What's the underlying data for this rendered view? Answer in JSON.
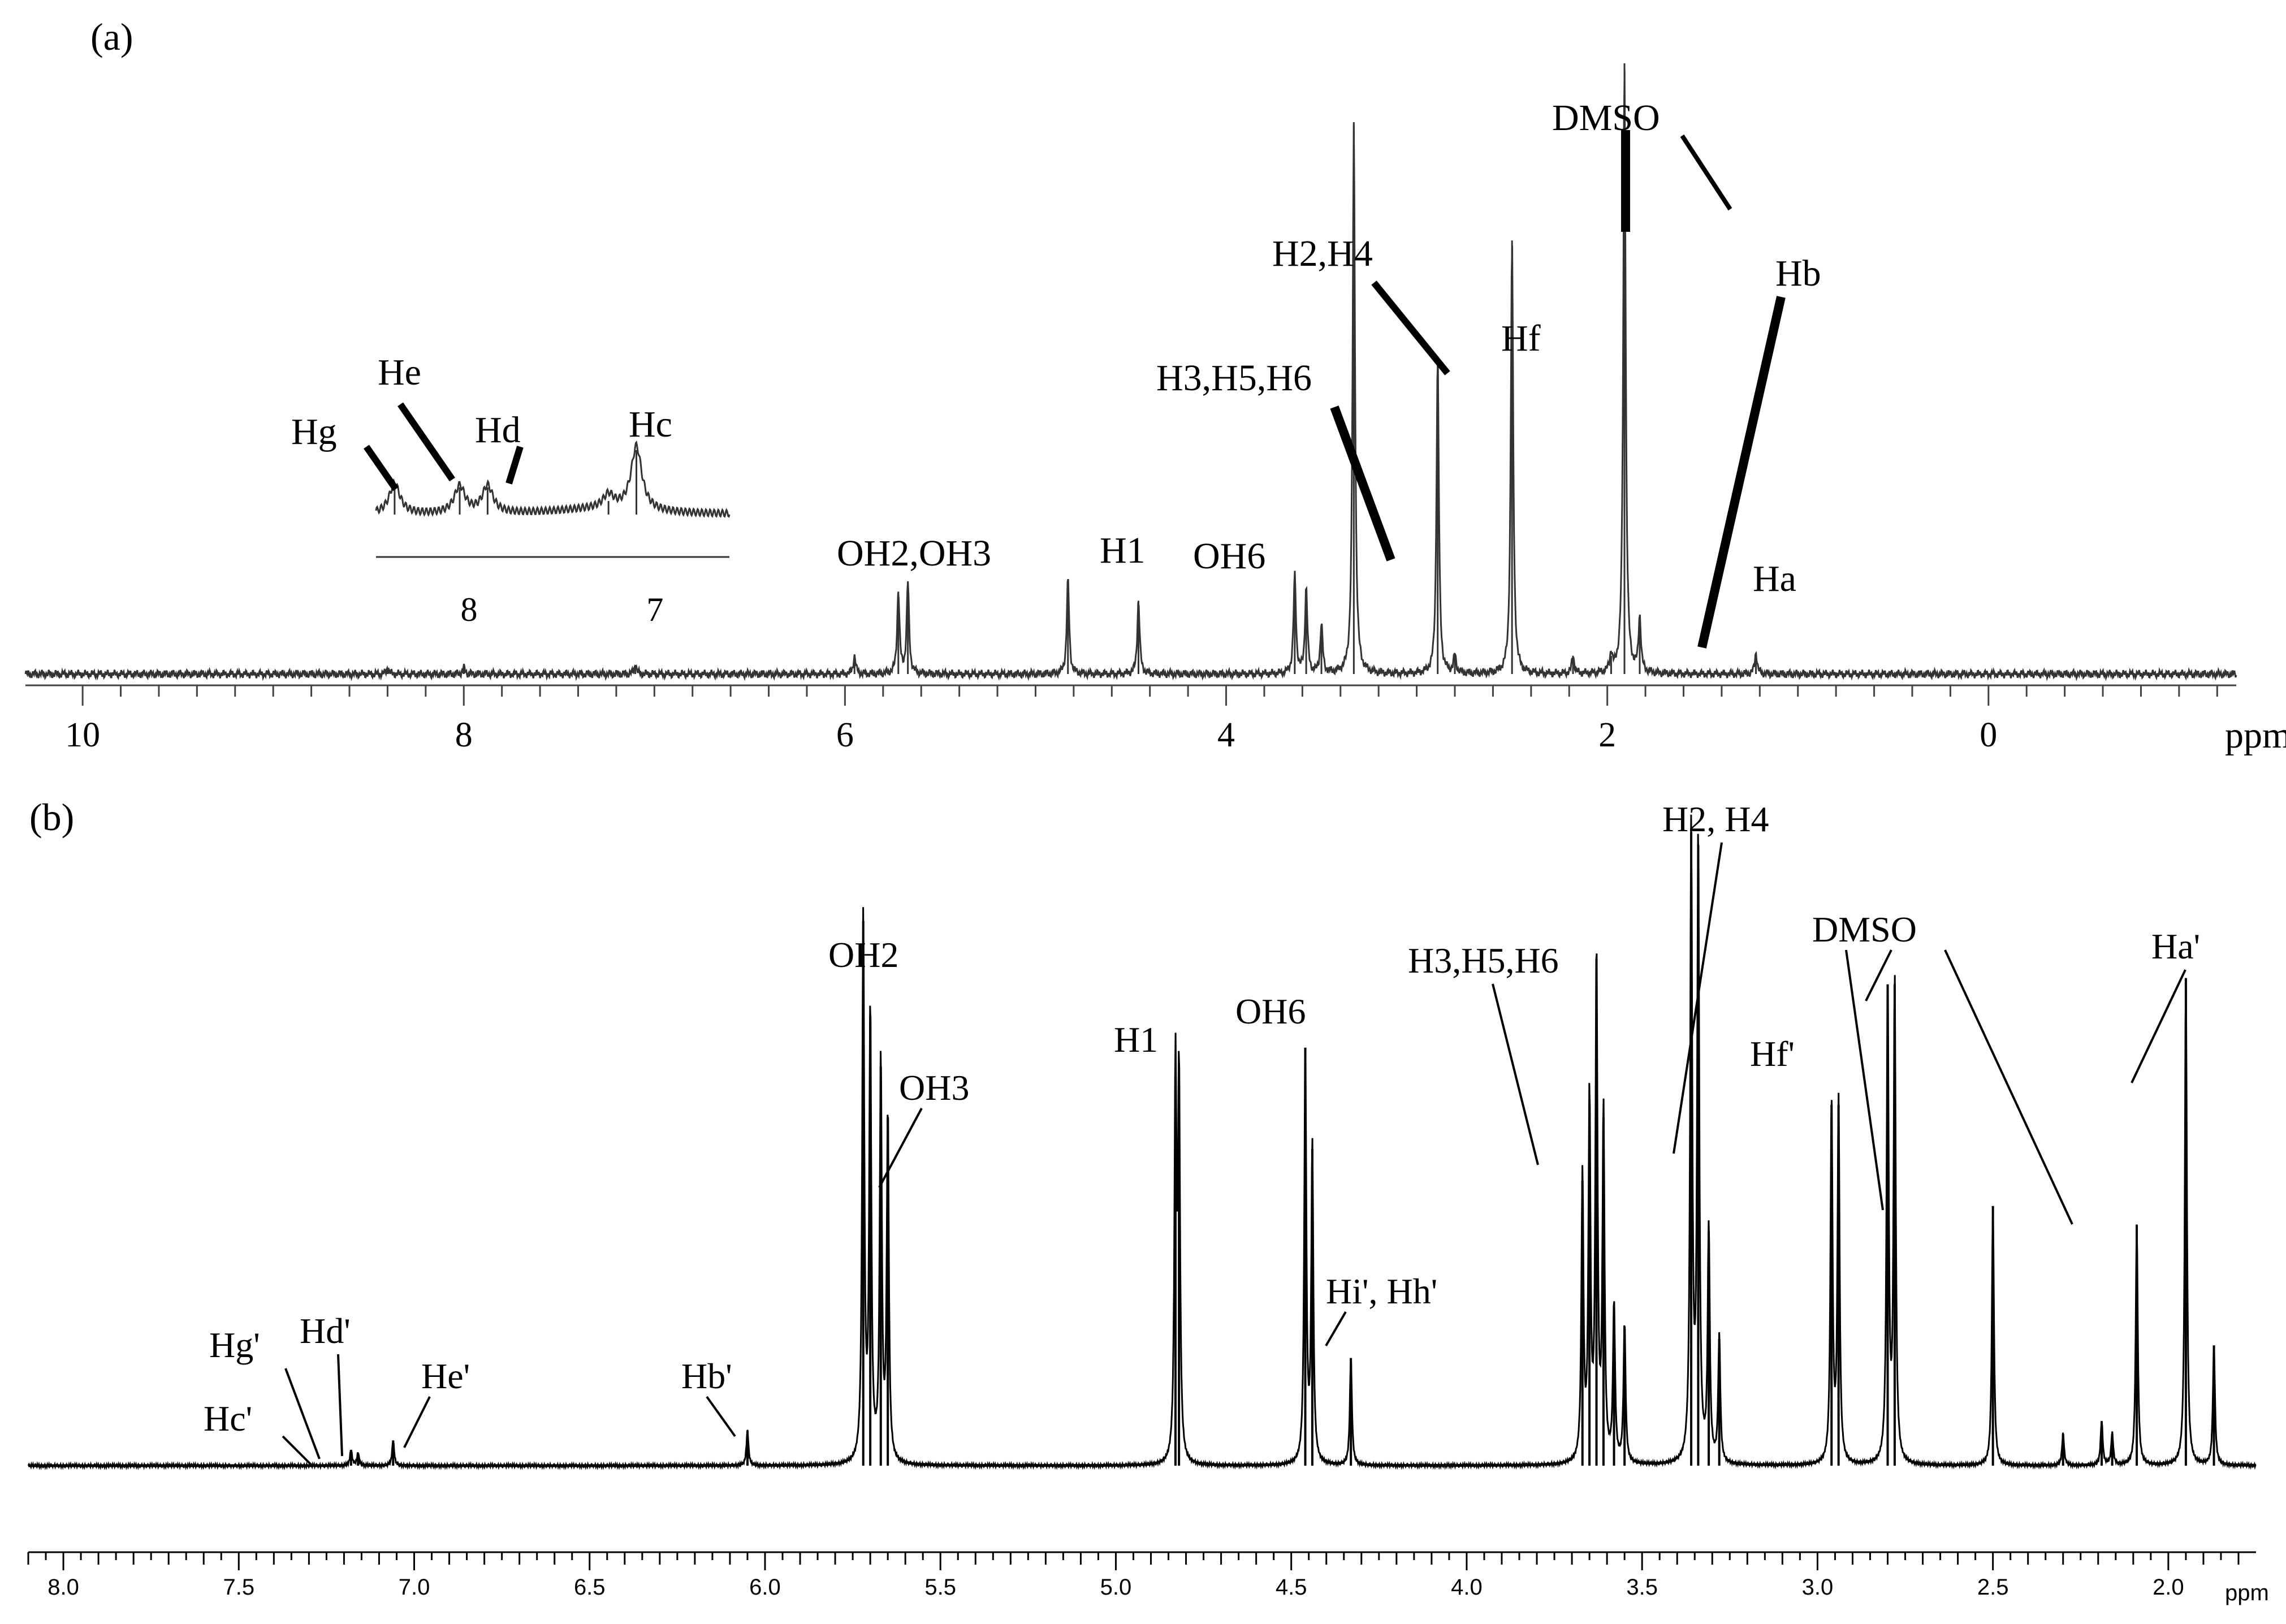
{
  "chart_data": [
    {
      "type": "line",
      "panel_label": "(a)",
      "x_unit": "ppm",
      "x_reversed": true,
      "xlim": [
        10.3,
        -1.3
      ],
      "x_ticks": [
        10,
        8,
        6,
        4,
        2,
        0
      ],
      "x_tick_labels": [
        "10",
        "8",
        "6",
        "4",
        "2",
        "0"
      ],
      "peaks": [
        {
          "ppm": 8.4,
          "height": 0.01
        },
        {
          "ppm": 8.0,
          "height": 0.01
        },
        {
          "ppm": 7.1,
          "height": 0.015
        },
        {
          "ppm": 5.95,
          "height": 0.03
        },
        {
          "ppm": 5.72,
          "height": 0.135
        },
        {
          "ppm": 5.67,
          "height": 0.15
        },
        {
          "ppm": 4.83,
          "height": 0.155
        },
        {
          "ppm": 4.46,
          "height": 0.12
        },
        {
          "ppm": 3.64,
          "height": 0.16
        },
        {
          "ppm": 3.58,
          "height": 0.14
        },
        {
          "ppm": 3.5,
          "height": 0.08
        },
        {
          "ppm": 3.33,
          "height": 0.9
        },
        {
          "ppm": 2.89,
          "height": 0.52
        },
        {
          "ppm": 2.8,
          "height": 0.03
        },
        {
          "ppm": 2.5,
          "height": 0.71
        },
        {
          "ppm": 2.18,
          "height": 0.03
        },
        {
          "ppm": 1.98,
          "height": 0.03
        },
        {
          "ppm": 1.91,
          "height": 1.0
        },
        {
          "ppm": 1.83,
          "height": 0.09
        },
        {
          "ppm": 1.22,
          "height": 0.035
        }
      ],
      "annotations": [
        {
          "text": "OH2,OH3",
          "ppm": 5.7
        },
        {
          "text": "H1",
          "ppm": 4.83
        },
        {
          "text": "OH6",
          "ppm": 4.46
        },
        {
          "text": "H3,H5,H6",
          "ppm": 3.64
        },
        {
          "text": "H2,H4",
          "ppm": 3.33
        },
        {
          "text": "Hf",
          "ppm": 2.89
        },
        {
          "text": "DMSO",
          "ppm": 2.5
        },
        {
          "text": "Hb",
          "ppm": 2.18
        },
        {
          "text": "Ha",
          "ppm": 1.83
        }
      ],
      "inset": {
        "x_ticks": [
          8,
          7
        ],
        "x_tick_labels": [
          "8",
          "7"
        ],
        "xlim": [
          8.5,
          6.6
        ],
        "peaks": [
          {
            "ppm": 8.4,
            "height": 0.45
          },
          {
            "ppm": 8.05,
            "height": 0.4
          },
          {
            "ppm": 7.9,
            "height": 0.4
          },
          {
            "ppm": 7.1,
            "height": 0.95
          },
          {
            "ppm": 7.25,
            "height": 0.2
          }
        ],
        "annotations": [
          {
            "text": "Hg",
            "ppm": 8.55
          },
          {
            "text": "He",
            "ppm": 8.05
          },
          {
            "text": "Hd",
            "ppm": 7.85
          },
          {
            "text": "Hc",
            "ppm": 7.1
          }
        ]
      }
    },
    {
      "type": "line",
      "panel_label": "(b)",
      "x_unit": "ppm",
      "x_reversed": true,
      "xlim": [
        8.1,
        1.75
      ],
      "x_ticks": [
        8.0,
        7.5,
        7.0,
        6.5,
        6.0,
        5.5,
        5.0,
        4.5,
        4.0,
        3.5,
        3.0,
        2.5,
        2.0
      ],
      "x_tick_labels": [
        "8.0",
        "7.5",
        "7.0",
        "6.5",
        "6.0",
        "5.5",
        "5.0",
        "4.5",
        "4.0",
        "3.5",
        "3.0",
        "2.5",
        "2.0"
      ],
      "peaks": [
        {
          "ppm": 7.18,
          "height": 0.025
        },
        {
          "ppm": 7.16,
          "height": 0.02
        },
        {
          "ppm": 7.06,
          "height": 0.04
        },
        {
          "ppm": 6.05,
          "height": 0.055
        },
        {
          "ppm": 5.72,
          "height": 0.86
        },
        {
          "ppm": 5.7,
          "height": 0.71
        },
        {
          "ppm": 5.67,
          "height": 0.63
        },
        {
          "ppm": 5.65,
          "height": 0.55
        },
        {
          "ppm": 4.83,
          "height": 0.62
        },
        {
          "ppm": 4.82,
          "height": 0.6
        },
        {
          "ppm": 4.46,
          "height": 0.66
        },
        {
          "ppm": 4.44,
          "height": 0.5
        },
        {
          "ppm": 4.33,
          "height": 0.17
        },
        {
          "ppm": 3.67,
          "height": 0.45
        },
        {
          "ppm": 3.65,
          "height": 0.57
        },
        {
          "ppm": 3.63,
          "height": 0.8
        },
        {
          "ppm": 3.61,
          "height": 0.55
        },
        {
          "ppm": 3.58,
          "height": 0.25
        },
        {
          "ppm": 3.55,
          "height": 0.22
        },
        {
          "ppm": 3.36,
          "height": 1.0
        },
        {
          "ppm": 3.34,
          "height": 0.98
        },
        {
          "ppm": 3.31,
          "height": 0.37
        },
        {
          "ppm": 3.28,
          "height": 0.2
        },
        {
          "ppm": 2.96,
          "height": 0.57
        },
        {
          "ppm": 2.94,
          "height": 0.57
        },
        {
          "ppm": 2.8,
          "height": 0.76
        },
        {
          "ppm": 2.78,
          "height": 0.76
        },
        {
          "ppm": 2.5,
          "height": 0.41
        },
        {
          "ppm": 2.3,
          "height": 0.05
        },
        {
          "ppm": 2.19,
          "height": 0.07
        },
        {
          "ppm": 2.16,
          "height": 0.05
        },
        {
          "ppm": 2.09,
          "height": 0.38
        },
        {
          "ppm": 1.95,
          "height": 0.77
        },
        {
          "ppm": 1.87,
          "height": 0.19
        }
      ],
      "annotations": [
        {
          "text": "Hg'",
          "ppm": 7.26
        },
        {
          "text": "Hc'",
          "ppm": 7.28
        },
        {
          "text": "Hd'",
          "ppm": 7.18
        },
        {
          "text": "He'",
          "ppm": 7.06
        },
        {
          "text": "Hb'",
          "ppm": 6.05
        },
        {
          "text": "OH2",
          "ppm": 5.72
        },
        {
          "text": "OH3",
          "ppm": 5.67
        },
        {
          "text": "H1",
          "ppm": 4.83
        },
        {
          "text": "OH6",
          "ppm": 4.46
        },
        {
          "text": "Hi', Hh'",
          "ppm": 4.33
        },
        {
          "text": "H3,H5,H6",
          "ppm": 3.63
        },
        {
          "text": "H2, H4",
          "ppm": 3.3
        },
        {
          "text": "Hf'",
          "ppm": 2.95
        },
        {
          "text": "DMSO",
          "ppm": 2.79
        },
        {
          "text": "Ha'",
          "ppm": 1.95
        }
      ]
    }
  ]
}
